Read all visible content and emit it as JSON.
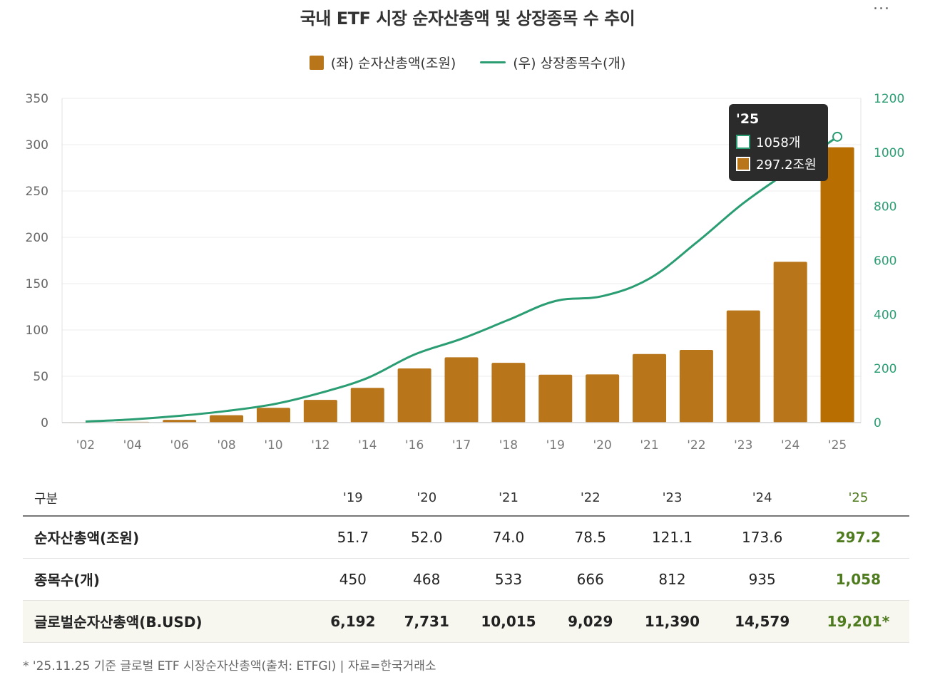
{
  "title": "국내 ETF 시장 순자산총액 및 상장종목 수 추이",
  "more_icon": "...",
  "legend": {
    "bar_label": "(좌) 순자산총액(조원)",
    "line_label": "(우) 상장종목수(개)"
  },
  "colors": {
    "bar": "#b87519",
    "bar_highlight": "#b86e00",
    "line": "#2a9d73",
    "axis_right": "#2a9d73",
    "highlight_text": "#4f7b1f"
  },
  "chart_data": {
    "type": "bar",
    "title": "국내 ETF 시장 순자산총액 및 상장종목 수 추이",
    "categories": [
      "'02",
      "'04",
      "'06",
      "'08",
      "'10",
      "'12",
      "'14",
      "'16",
      "'17",
      "'18",
      "'19",
      "'20",
      "'21",
      "'22",
      "'23",
      "'24",
      "'25"
    ],
    "series": [
      {
        "name": "(좌) 순자산총액(조원)",
        "type": "bar",
        "axis": "left",
        "values": [
          0.3,
          0.9,
          3.0,
          8.0,
          16.0,
          24.5,
          37.5,
          58.5,
          70.5,
          64.5,
          51.7,
          52.0,
          74.0,
          78.5,
          121.1,
          173.6,
          297.2
        ]
      },
      {
        "name": "(우) 상장종목수(개)",
        "type": "line",
        "axis": "right",
        "values": [
          4,
          12,
          25,
          43,
          68,
          110,
          165,
          252,
          310,
          380,
          450,
          468,
          533,
          666,
          812,
          935,
          1058
        ]
      }
    ],
    "ylim_left": [
      0,
      350
    ],
    "yticks_left": [
      "0",
      "50",
      "100",
      "150",
      "200",
      "250",
      "300",
      "350"
    ],
    "ylim_right": [
      0,
      1200
    ],
    "yticks_right": [
      "0",
      "200",
      "400",
      "600",
      "800",
      "1000",
      "1200"
    ],
    "grid": true,
    "tooltip": {
      "category": "'25",
      "line_value": "1058개",
      "bar_value": "297.2조원"
    }
  },
  "table": {
    "header": [
      "구분",
      "'19",
      "'20",
      "'21",
      "'22",
      "'23",
      "'24",
      "'25"
    ],
    "rows": [
      {
        "label": "순자산총액(조원)",
        "values": [
          "51.7",
          "52.0",
          "74.0",
          "78.5",
          "121.1",
          "173.6",
          "297.2"
        ]
      },
      {
        "label": "종목수(개)",
        "values": [
          "450",
          "468",
          "533",
          "666",
          "812",
          "935",
          "1,058"
        ]
      },
      {
        "label": "글로벌순자산총액(B.USD)",
        "values": [
          "6,192",
          "7,731",
          "10,015",
          "9,029",
          "11,390",
          "14,579",
          "19,201*"
        ]
      }
    ]
  },
  "footnote": "* '25.11.25 기준 글로벌 ETF 시장순자산총액(출처: ETFGI) | 자료=한국거래소"
}
